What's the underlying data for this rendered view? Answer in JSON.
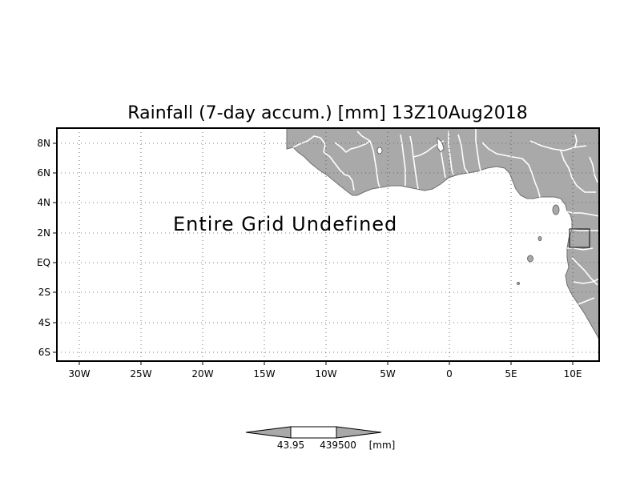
{
  "title": "Rainfall (7-day accum.) [mm] 13Z10Aug2018",
  "message": "Entire Grid Undefined",
  "axes": {
    "lon_ticks": [
      "30W",
      "25W",
      "20W",
      "15W",
      "10W",
      "5W",
      "0",
      "5E",
      "10E"
    ],
    "lat_ticks": [
      "8N",
      "6N",
      "4N",
      "2N",
      "EQ",
      "2S",
      "4S",
      "6S"
    ]
  },
  "colorbar": {
    "low": "43.95",
    "high": "439500",
    "unit": "[mm]"
  },
  "colors": {
    "land": "#a9a9a9",
    "border": "#ffffff",
    "frame": "#000000"
  },
  "chart_data": {
    "type": "heatmap",
    "title": "Rainfall (7-day accum.) [mm] 13Z10Aug2018",
    "xlim_deg": [
      -32,
      12
    ],
    "ylim_deg": [
      -6.5,
      8.5
    ],
    "grid": true,
    "values": [],
    "note_text": "Entire Grid Undefined"
  }
}
